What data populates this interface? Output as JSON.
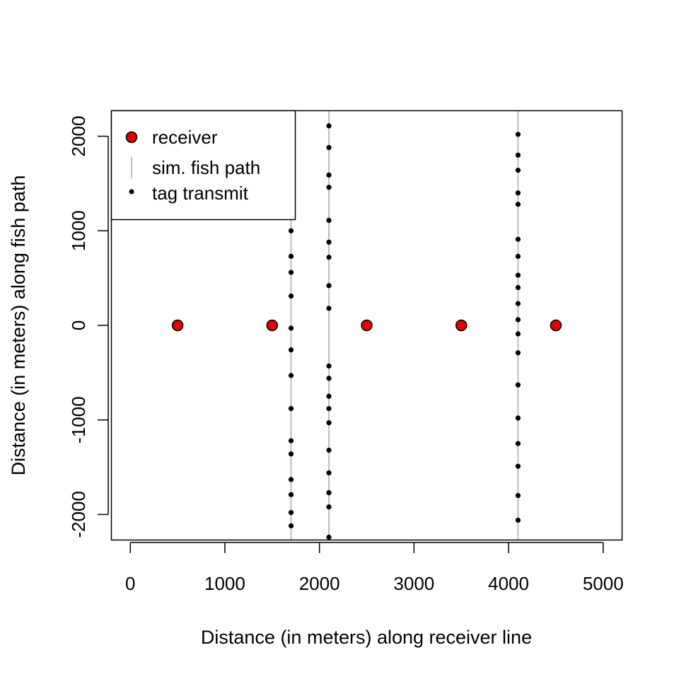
{
  "chart_data": {
    "type": "scatter",
    "xlabel": "Distance (in meters) along receiver line",
    "ylabel": "Distance (in meters) along fish path",
    "xlim": [
      -200,
      5200
    ],
    "ylim": [
      -2270,
      2270
    ],
    "x_ticks": [
      0,
      1000,
      2000,
      3000,
      4000,
      5000
    ],
    "y_ticks": [
      -2000,
      -1000,
      0,
      1000,
      2000
    ],
    "grid": false,
    "legend": {
      "position": "top-left",
      "entries": [
        {
          "label": "receiver",
          "symbol": "filled-circle",
          "color": "#e00000"
        },
        {
          "label": "sim. fish path",
          "symbol": "vertical-line",
          "color": "#bebebe"
        },
        {
          "label": "tag transmit",
          "symbol": "small-dot",
          "color": "#000000"
        }
      ]
    },
    "receivers": {
      "name": "receiver",
      "color": "#e00000",
      "x": [
        500,
        1500,
        2500,
        3500,
        4500
      ],
      "y": [
        0,
        0,
        0,
        0,
        0
      ]
    },
    "fish_paths": {
      "name": "sim. fish path",
      "color": "#bebebe",
      "x": [
        1700,
        2100,
        4100
      ]
    },
    "tag_transmits": {
      "name": "tag transmit",
      "color": "#000000",
      "groups": [
        {
          "x": 1700,
          "y": [
            1000,
            730,
            560,
            310,
            -30,
            -260,
            -530,
            -880,
            -1220,
            -1360,
            -1630,
            -1790,
            -1980,
            -2120
          ]
        },
        {
          "x": 2100,
          "y": [
            2110,
            1880,
            1590,
            1460,
            1110,
            880,
            720,
            420,
            180,
            -430,
            -560,
            -750,
            -880,
            -1030,
            -1320,
            -1560,
            -1770,
            -1920,
            -2240
          ]
        },
        {
          "x": 4100,
          "y": [
            2020,
            1800,
            1640,
            1400,
            1280,
            910,
            730,
            530,
            400,
            230,
            60,
            -90,
            -290,
            -630,
            -980,
            -1250,
            -1490,
            -1800,
            -2060
          ]
        }
      ]
    }
  }
}
